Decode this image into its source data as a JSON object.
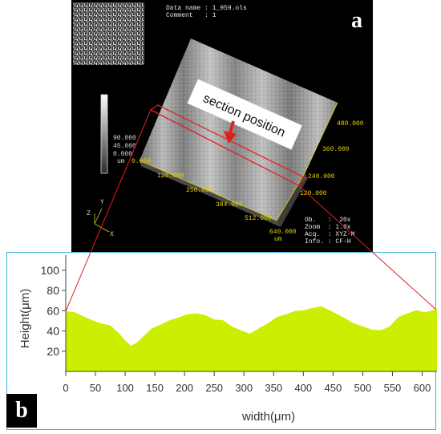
{
  "panel_a": {
    "label": "a",
    "meta": {
      "data_name": "Data name : 1_959.ols",
      "comment": "Comment   : 1"
    },
    "colorbar": {
      "ticks": [
        "90.000",
        "45.000",
        "0.000"
      ],
      "unit": "um"
    },
    "annotation": "section position",
    "x_ticks": [
      "0.000",
      "128.000",
      "256.000",
      "384.000",
      "512.000",
      "640.000"
    ],
    "x_unit": "um",
    "y_ticks": [
      "120.000",
      "240.000",
      "360.000",
      "480.000"
    ],
    "axis_labels": {
      "x": "X",
      "y": "Y",
      "z": "Z"
    },
    "info": {
      "ob": "Ob.   :  20x",
      "zoom": "Zoom  : 1.0x",
      "acq": "Acq.  : XYZ-M",
      "info": "Info. : CF-H"
    },
    "colors": {
      "section_line": "#e02020",
      "arrow": "#e02020",
      "tick_text": "#e8d000"
    }
  },
  "panel_b": {
    "label": "b",
    "colors": {
      "fill": "#ccee00",
      "frame": "#3aaee0",
      "connector": "#e02020"
    }
  },
  "chart_data": {
    "type": "area",
    "xlabel": "width(μm)",
    "ylabel": "Height(μm)",
    "xlim": [
      0,
      625
    ],
    "ylim": [
      0,
      115
    ],
    "x_ticks": [
      0,
      50,
      100,
      150,
      200,
      250,
      300,
      350,
      400,
      450,
      500,
      550,
      600
    ],
    "y_ticks": [
      20,
      40,
      60,
      80,
      100
    ],
    "x": [
      0,
      15,
      30,
      45,
      60,
      75,
      90,
      100,
      110,
      120,
      130,
      145,
      160,
      175,
      190,
      205,
      220,
      235,
      250,
      265,
      280,
      295,
      310,
      325,
      340,
      355,
      370,
      385,
      400,
      415,
      430,
      440,
      455,
      470,
      485,
      500,
      515,
      530,
      545,
      560,
      575,
      590,
      605,
      625
    ],
    "values": [
      60,
      58,
      55,
      50,
      48,
      45,
      38,
      30,
      26,
      28,
      35,
      42,
      47,
      50,
      54,
      56,
      58,
      55,
      52,
      50,
      45,
      40,
      38,
      42,
      48,
      53,
      57,
      59,
      61,
      62,
      65,
      61,
      58,
      52,
      48,
      44,
      42,
      40,
      45,
      53,
      58,
      60,
      59,
      61
    ]
  }
}
